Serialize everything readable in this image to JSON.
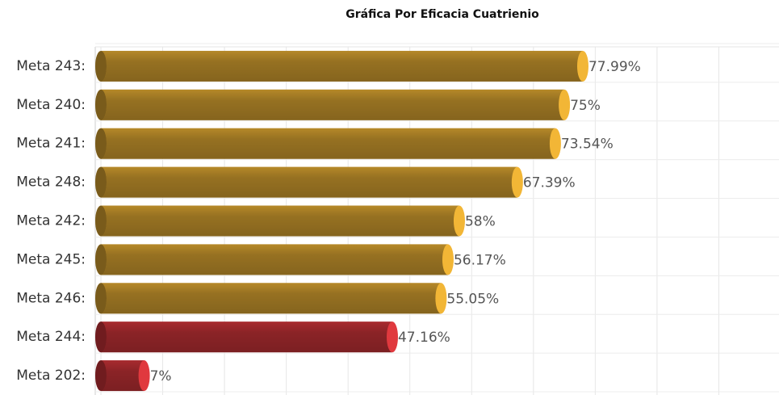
{
  "chart_data": {
    "type": "bar",
    "orientation": "horizontal",
    "title": "Gráfica Por Eficacia Cuatrienio",
    "categories": [
      "Meta 243:",
      "Meta 240:",
      "Meta 241:",
      "Meta 248:",
      "Meta 242:",
      "Meta 245:",
      "Meta 246:",
      "Meta 244:",
      "Meta 202:"
    ],
    "values": [
      77.99,
      75,
      73.54,
      67.39,
      58,
      56.17,
      55.05,
      47.16,
      7
    ],
    "value_labels": [
      "77.99%",
      "75%",
      "73.54%",
      "67.39%",
      "58%",
      "56.17%",
      "55.05%",
      "47.16%",
      "7%"
    ],
    "colors": [
      "#f2b636",
      "#f2b636",
      "#f2b636",
      "#f2b636",
      "#f2b636",
      "#f2b636",
      "#f2b636",
      "#e0393e",
      "#e0393e"
    ],
    "xlim": [
      0,
      110
    ],
    "xticks": [
      0,
      10,
      20,
      30,
      40,
      50,
      60,
      70,
      80,
      90,
      100,
      110
    ],
    "grid": true
  }
}
